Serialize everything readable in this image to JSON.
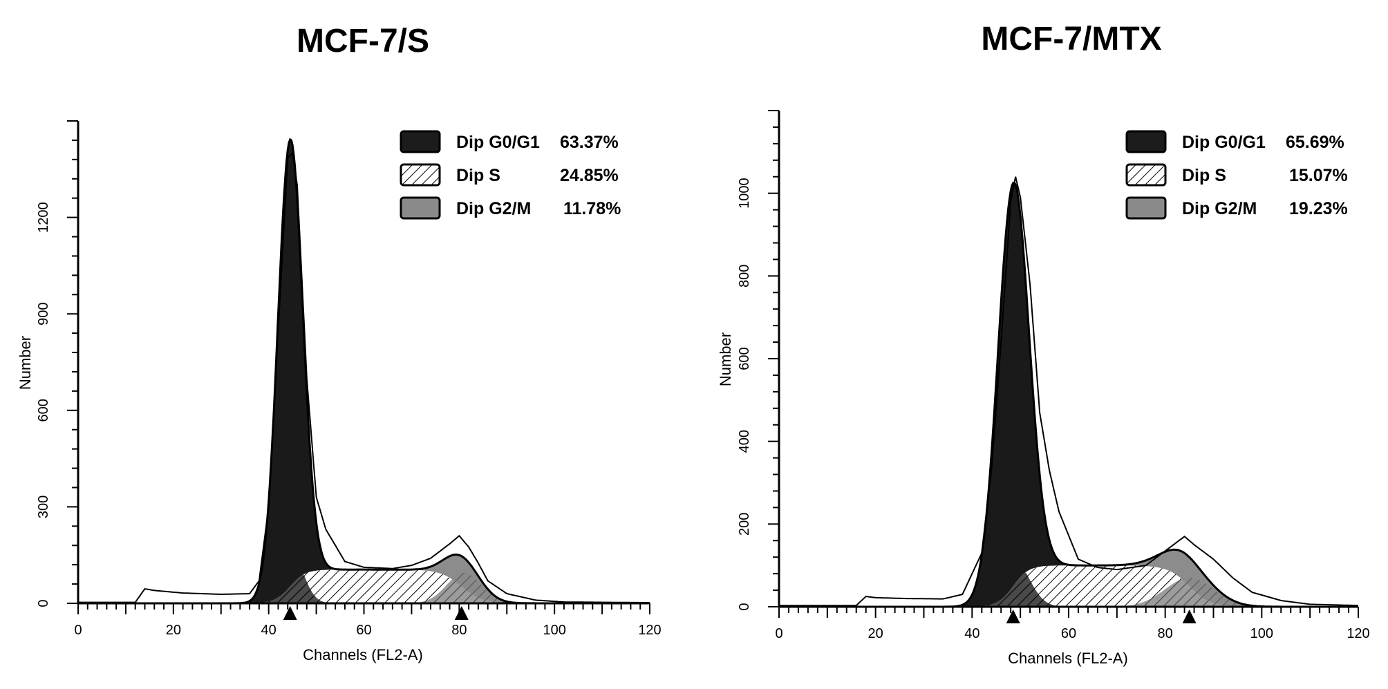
{
  "chart_data": [
    {
      "type": "area",
      "title": "MCF-7/S",
      "xlabel": "Channels (FL2-A)",
      "ylabel": "Number",
      "xlim": [
        0,
        120
      ],
      "ylim": [
        0,
        1500
      ],
      "xticks": [
        0,
        20,
        40,
        60,
        80,
        100,
        120
      ],
      "yticks": [
        0,
        300,
        600,
        900,
        1200
      ],
      "grid": false,
      "legend_position": "top-right",
      "legend": [
        {
          "label": "Dip G0/G1",
          "value": "63.37%",
          "fill": "dark"
        },
        {
          "label": "Dip S",
          "value": "24.85%",
          "fill": "hatched"
        },
        {
          "label": "Dip G2/M",
          "value": "11.78%",
          "fill": "gray"
        }
      ],
      "peak_markers": [
        44.5,
        80.5
      ],
      "g1": {
        "mean": 44.5,
        "sd": 2.6,
        "height": 1390
      },
      "s_phase": {
        "start": 44.5,
        "end": 80.5,
        "level": 105
      },
      "g2m": {
        "mean": 81,
        "sd": 3.6,
        "height": 95
      },
      "histogram": [
        [
          0,
          3
        ],
        [
          12,
          3
        ],
        [
          14,
          45
        ],
        [
          16,
          40
        ],
        [
          22,
          32
        ],
        [
          30,
          28
        ],
        [
          36,
          30
        ],
        [
          38,
          70
        ],
        [
          40,
          300
        ],
        [
          42,
          850
        ],
        [
          44,
          1385
        ],
        [
          45,
          1400
        ],
        [
          46,
          1300
        ],
        [
          48,
          700
        ],
        [
          50,
          330
        ],
        [
          52,
          230
        ],
        [
          56,
          130
        ],
        [
          60,
          112
        ],
        [
          66,
          108
        ],
        [
          70,
          118
        ],
        [
          74,
          140
        ],
        [
          78,
          185
        ],
        [
          80,
          210
        ],
        [
          82,
          175
        ],
        [
          84,
          125
        ],
        [
          86,
          70
        ],
        [
          90,
          30
        ],
        [
          96,
          10
        ],
        [
          102,
          4
        ],
        [
          120,
          2
        ]
      ]
    },
    {
      "type": "area",
      "title": "MCF-7/MTX",
      "xlabel": "Channels (FL2-A)",
      "ylabel": "Number",
      "xlim": [
        0,
        120
      ],
      "ylim": [
        0,
        1200
      ],
      "xticks": [
        0,
        20,
        40,
        60,
        80,
        100,
        120
      ],
      "yticks": [
        0,
        200,
        400,
        600,
        800,
        1000
      ],
      "grid": false,
      "legend_position": "top-right",
      "legend": [
        {
          "label": "Dip G0/G1",
          "value": "65.69%",
          "fill": "dark"
        },
        {
          "label": "Dip S",
          "value": "15.07%",
          "fill": "hatched"
        },
        {
          "label": "Dip G2/M",
          "value": "19.23%",
          "fill": "gray"
        }
      ],
      "peak_markers": [
        48.5,
        85
      ],
      "g1": {
        "mean": 48.5,
        "sd": 3.2,
        "height": 975
      },
      "s_phase": {
        "start": 48.5,
        "end": 85,
        "level": 100
      },
      "g2m": {
        "mean": 85,
        "sd": 5.0,
        "height": 70
      },
      "histogram": [
        [
          0,
          3
        ],
        [
          16,
          3
        ],
        [
          18,
          25
        ],
        [
          20,
          22
        ],
        [
          26,
          20
        ],
        [
          34,
          19
        ],
        [
          38,
          30
        ],
        [
          42,
          130
        ],
        [
          44,
          330
        ],
        [
          46,
          640
        ],
        [
          48,
          980
        ],
        [
          49,
          1040
        ],
        [
          50,
          990
        ],
        [
          52,
          780
        ],
        [
          54,
          470
        ],
        [
          56,
          330
        ],
        [
          58,
          230
        ],
        [
          62,
          115
        ],
        [
          66,
          95
        ],
        [
          70,
          90
        ],
        [
          76,
          100
        ],
        [
          80,
          135
        ],
        [
          84,
          170
        ],
        [
          86,
          150
        ],
        [
          90,
          115
        ],
        [
          94,
          70
        ],
        [
          98,
          35
        ],
        [
          104,
          15
        ],
        [
          110,
          6
        ],
        [
          120,
          3
        ]
      ]
    }
  ]
}
